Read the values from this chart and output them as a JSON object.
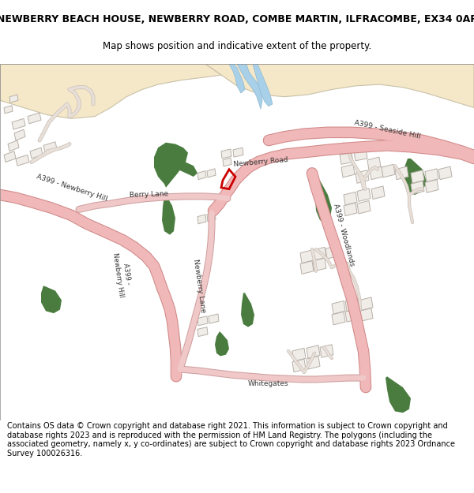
{
  "title_line1": "NEWBERRY BEACH HOUSE, NEWBERRY ROAD, COMBE MARTIN, ILFRACOMBE, EX34 0AP",
  "title_line2": "Map shows position and indicative extent of the property.",
  "footer_text": "Contains OS data © Crown copyright and database right 2021. This information is subject to Crown copyright and database rights 2023 and is reproduced with the permission of HM Land Registry. The polygons (including the associated geometry, namely x, y co-ordinates) are subject to Crown copyright and database rights 2023 Ordnance Survey 100026316.",
  "figsize": [
    6.0,
    6.25
  ],
  "dpi": 100,
  "map_bg": "#ffffff",
  "land_beige": "#f5e8c8",
  "land_white": "#ffffff",
  "water_blue": "#a8d0e8",
  "green_dark": "#4a7c3f",
  "green_light": "#c8dfa0",
  "road_pink_fill": "#f0b8b8",
  "road_pink_border": "#d88888",
  "building_fill": "#e8e0d8",
  "building_border": "#c0b8b0",
  "property_red": "#cc0000",
  "text_color": "#333333",
  "title_fontsize": 9.0,
  "subtitle_fontsize": 8.5,
  "footer_fontsize": 7.0,
  "road_label_fontsize": 6.5
}
